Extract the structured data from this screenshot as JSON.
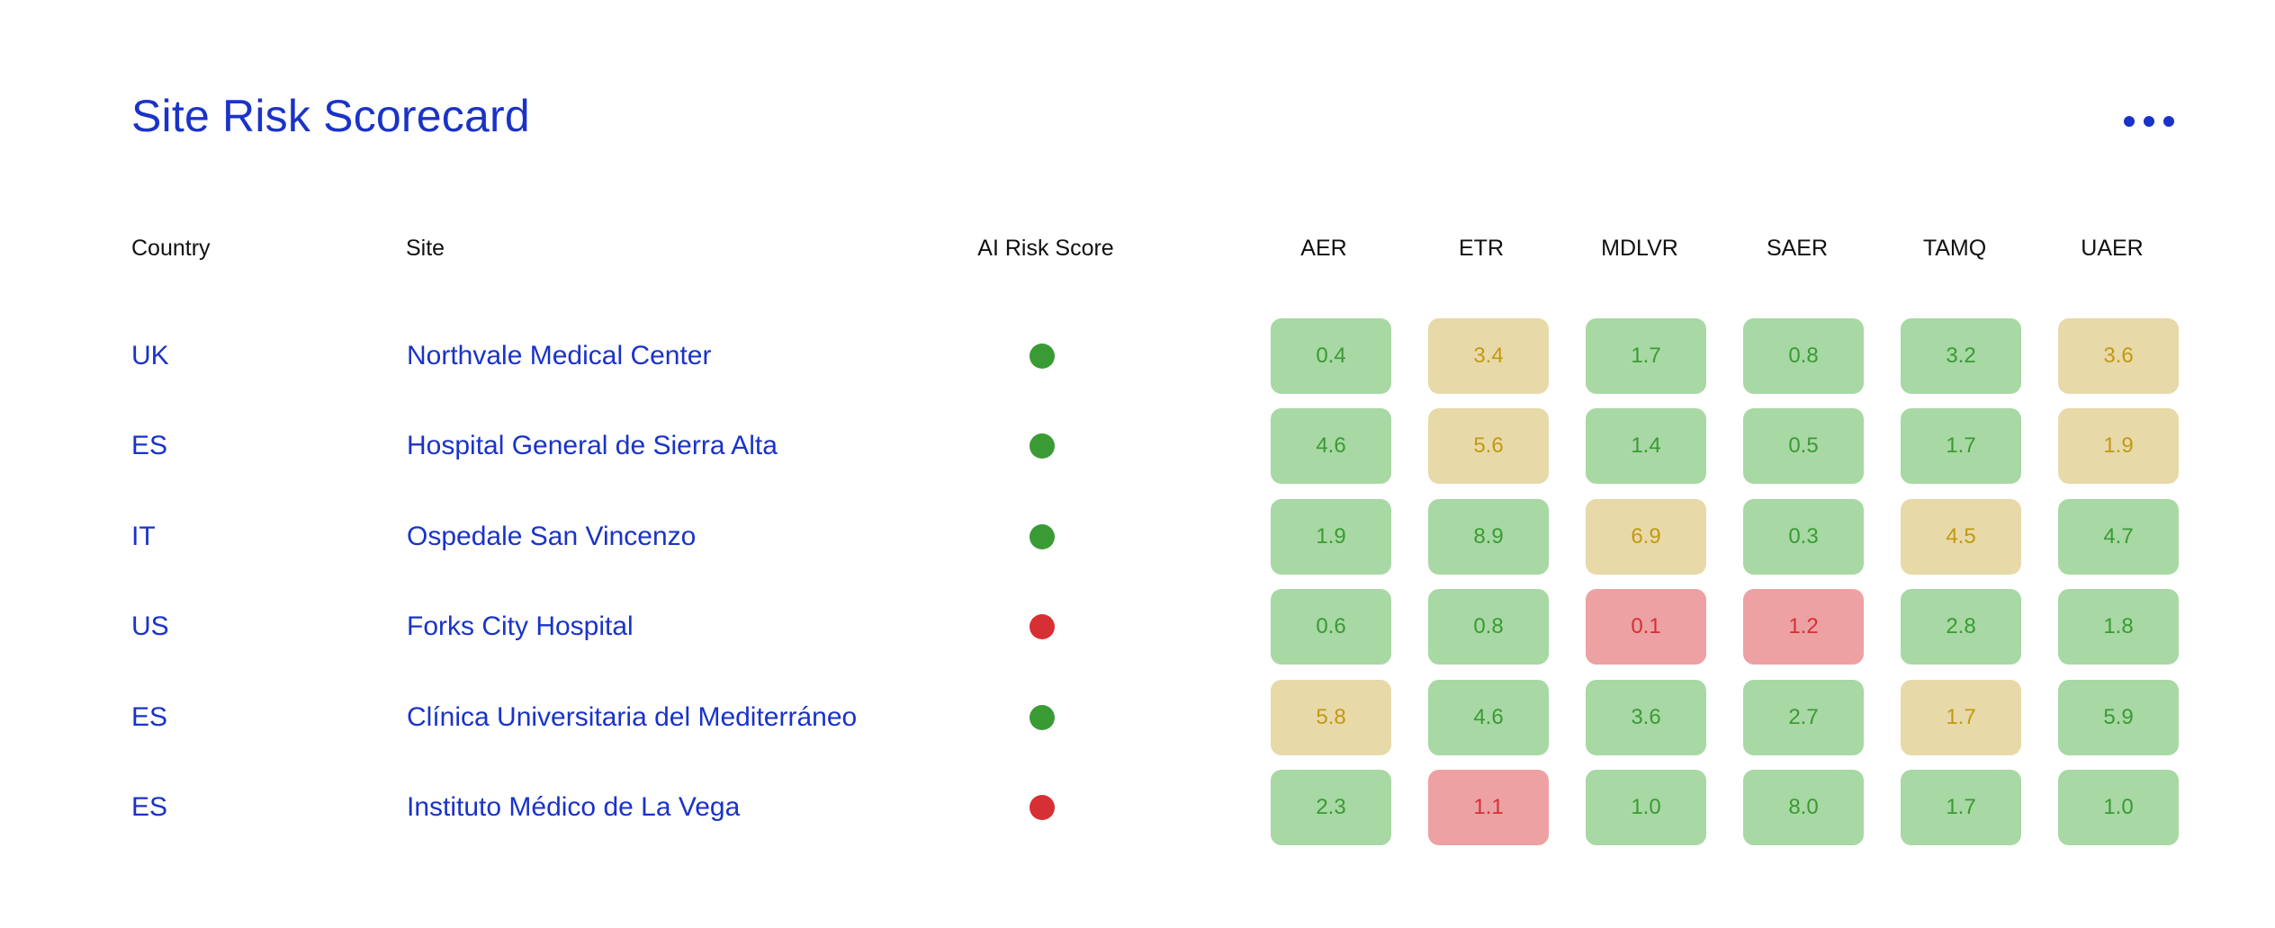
{
  "title": "Site Risk Scorecard",
  "more_icon": "more-horizontal-icon",
  "colors": {
    "accent": "#1a33c7",
    "risk_green": "#3a9b34",
    "risk_red": "#d63034",
    "cell_green_bg": "#a8d8a3",
    "cell_yellow_bg": "#e8d9a8",
    "cell_red_bg": "#eda1a3"
  },
  "headers": {
    "country": "Country",
    "site": "Site",
    "ai_risk": "AI Risk Score",
    "metrics": [
      "AER",
      "ETR",
      "MDLVR",
      "SAER",
      "TAMQ",
      "UAER"
    ]
  },
  "rows": [
    {
      "country": "UK",
      "site": "Northvale Medical Center",
      "risk": "green",
      "metrics": [
        {
          "value": "0.4",
          "level": "green"
        },
        {
          "value": "3.4",
          "level": "yellow"
        },
        {
          "value": "1.7",
          "level": "green"
        },
        {
          "value": "0.8",
          "level": "green"
        },
        {
          "value": "3.2",
          "level": "green"
        },
        {
          "value": "3.6",
          "level": "yellow"
        }
      ]
    },
    {
      "country": "ES",
      "site": "Hospital General de Sierra Alta",
      "risk": "green",
      "metrics": [
        {
          "value": "4.6",
          "level": "green"
        },
        {
          "value": "5.6",
          "level": "yellow"
        },
        {
          "value": "1.4",
          "level": "green"
        },
        {
          "value": "0.5",
          "level": "green"
        },
        {
          "value": "1.7",
          "level": "green"
        },
        {
          "value": "1.9",
          "level": "yellow"
        }
      ]
    },
    {
      "country": "IT",
      "site": "Ospedale San Vincenzo",
      "risk": "green",
      "metrics": [
        {
          "value": "1.9",
          "level": "green"
        },
        {
          "value": "8.9",
          "level": "green"
        },
        {
          "value": "6.9",
          "level": "yellow"
        },
        {
          "value": "0.3",
          "level": "green"
        },
        {
          "value": "4.5",
          "level": "yellow"
        },
        {
          "value": "4.7",
          "level": "green"
        }
      ]
    },
    {
      "country": "US",
      "site": "Forks City Hospital",
      "risk": "red",
      "metrics": [
        {
          "value": "0.6",
          "level": "green"
        },
        {
          "value": "0.8",
          "level": "green"
        },
        {
          "value": "0.1",
          "level": "red"
        },
        {
          "value": "1.2",
          "level": "red"
        },
        {
          "value": "2.8",
          "level": "green"
        },
        {
          "value": "1.8",
          "level": "green"
        }
      ]
    },
    {
      "country": "ES",
      "site": "Clínica Universitaria del Mediterráneo",
      "risk": "green",
      "metrics": [
        {
          "value": "5.8",
          "level": "yellow"
        },
        {
          "value": "4.6",
          "level": "green"
        },
        {
          "value": "3.6",
          "level": "green"
        },
        {
          "value": "2.7",
          "level": "green"
        },
        {
          "value": "1.7",
          "level": "yellow"
        },
        {
          "value": "5.9",
          "level": "green"
        }
      ]
    },
    {
      "country": "ES",
      "site": "Instituto Médico de La Vega",
      "risk": "red",
      "metrics": [
        {
          "value": "2.3",
          "level": "green"
        },
        {
          "value": "1.1",
          "level": "red"
        },
        {
          "value": "1.0",
          "level": "green"
        },
        {
          "value": "8.0",
          "level": "green"
        },
        {
          "value": "1.7",
          "level": "green"
        },
        {
          "value": "1.0",
          "level": "green"
        }
      ]
    }
  ]
}
